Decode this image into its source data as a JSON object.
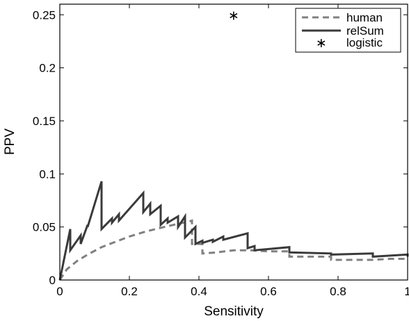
{
  "chart_data": {
    "type": "line",
    "title": "",
    "xlabel": "Sensitivity",
    "ylabel": "PPV",
    "xlim": [
      0,
      1
    ],
    "ylim": [
      0,
      0.26
    ],
    "x_ticks": [
      0,
      0.2,
      0.4,
      0.6,
      0.8,
      1
    ],
    "x_tick_labels": [
      "0",
      "0.2",
      "0.4",
      "0.6",
      "0.8",
      "1"
    ],
    "y_ticks": [
      0,
      0.05,
      0.1,
      0.15,
      0.2,
      0.25
    ],
    "y_tick_labels": [
      "0",
      "0.05",
      "0.1",
      "0.15",
      "0.2",
      "0.25"
    ],
    "grid": false,
    "legend_position": "top-right",
    "series": [
      {
        "name": "human",
        "style": "dashed",
        "color": "#808080",
        "x": [
          0,
          0.02,
          0.05,
          0.08,
          0.12,
          0.16,
          0.2,
          0.25,
          0.3,
          0.34,
          0.37,
          0.38,
          0.38,
          0.41,
          0.41,
          0.45,
          0.5,
          0.55,
          0.6,
          0.65,
          0.66,
          0.66,
          0.72,
          0.75,
          0.78,
          0.78,
          0.85,
          0.9,
          0.95,
          1
        ],
        "y": [
          0,
          0.01,
          0.018,
          0.024,
          0.031,
          0.036,
          0.041,
          0.046,
          0.05,
          0.053,
          0.055,
          0.056,
          0.034,
          0.034,
          0.025,
          0.026,
          0.028,
          0.028,
          0.027,
          0.027,
          0.027,
          0.022,
          0.022,
          0.022,
          0.022,
          0.019,
          0.019,
          0.019,
          0.02,
          0.02
        ]
      },
      {
        "name": "relSum",
        "style": "solid",
        "color": "#3a3a3a",
        "x": [
          0,
          0.03,
          0.03,
          0.06,
          0.06,
          0.08,
          0.08,
          0.12,
          0.12,
          0.15,
          0.15,
          0.17,
          0.17,
          0.24,
          0.24,
          0.26,
          0.26,
          0.29,
          0.29,
          0.31,
          0.31,
          0.34,
          0.34,
          0.36,
          0.36,
          0.39,
          0.39,
          0.41,
          0.41,
          0.44,
          0.44,
          0.47,
          0.47,
          0.54,
          0.54,
          0.56,
          0.56,
          0.66,
          0.66,
          0.78,
          0.78,
          0.9,
          0.9,
          1,
          1
        ],
        "y": [
          0,
          0.048,
          0.028,
          0.042,
          0.034,
          0.052,
          0.05,
          0.093,
          0.048,
          0.058,
          0.054,
          0.062,
          0.056,
          0.082,
          0.064,
          0.072,
          0.062,
          0.07,
          0.052,
          0.058,
          0.054,
          0.06,
          0.05,
          0.06,
          0.04,
          0.05,
          0.034,
          0.037,
          0.035,
          0.038,
          0.036,
          0.041,
          0.038,
          0.044,
          0.03,
          0.032,
          0.028,
          0.031,
          0.026,
          0.025,
          0.024,
          0.025,
          0.022,
          0.024,
          0.022
        ]
      },
      {
        "name": "logistic",
        "style": "marker",
        "marker": "*",
        "color": "#000000",
        "x": [
          0.5
        ],
        "y": [
          0.25
        ]
      }
    ]
  }
}
